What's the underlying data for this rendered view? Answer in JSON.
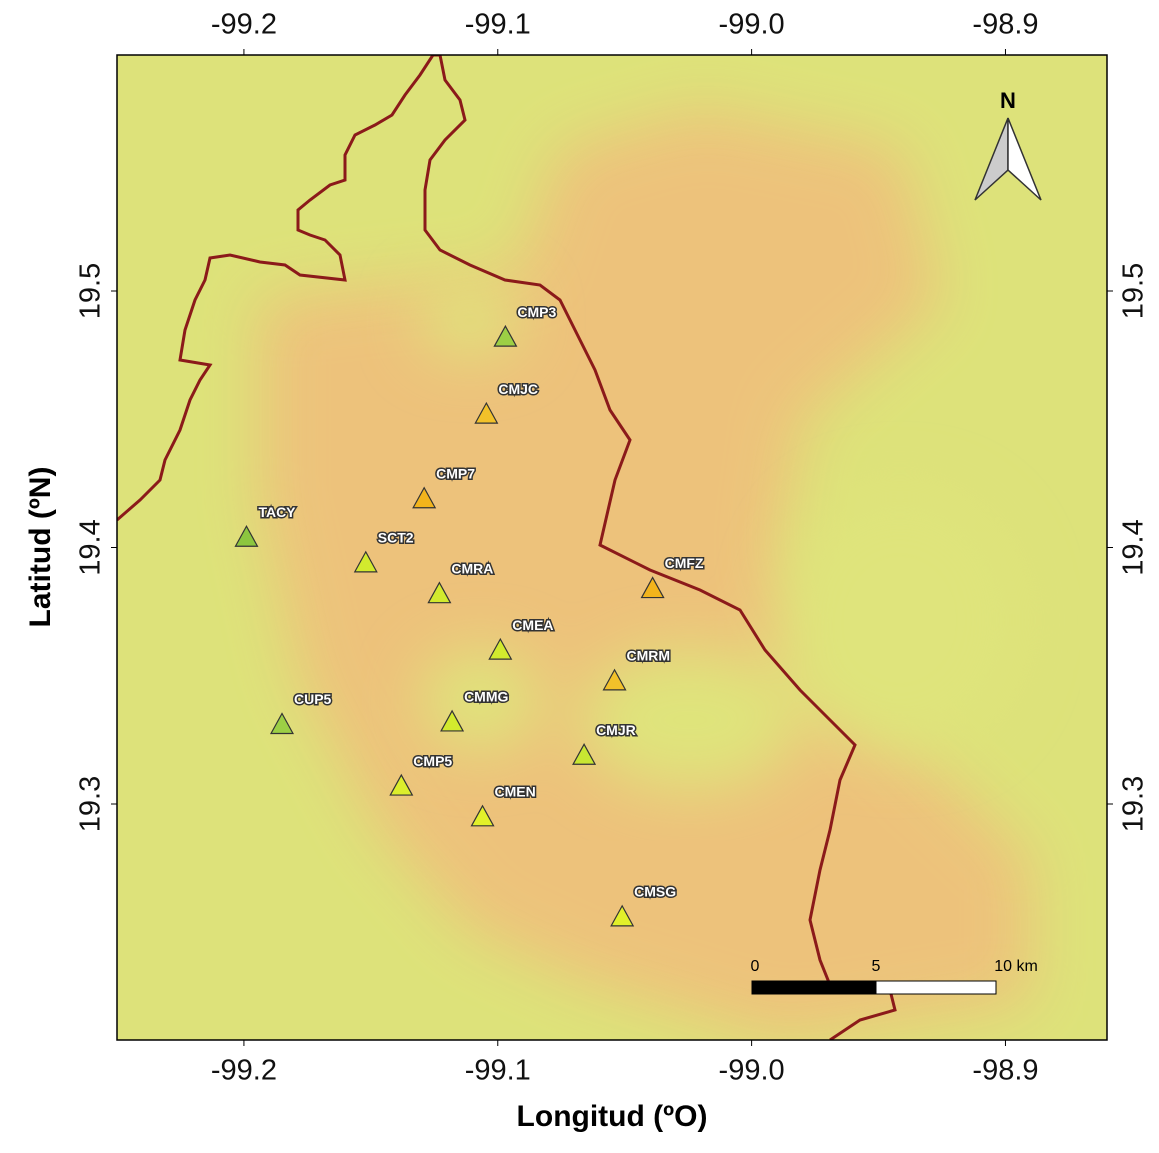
{
  "map": {
    "x_label": "Longitud (ºO)",
    "y_label": "Latitud (ºN)",
    "xlim": [
      -99.25,
      -98.86
    ],
    "ylim": [
      19.208,
      19.592
    ],
    "xticks": [
      -99.2,
      -99.1,
      {
        "value": -99.0,
        "label": "-99.0"
      },
      -98.9
    ],
    "yticks": [
      19.3,
      19.4,
      19.5
    ],
    "north": "N",
    "scale_labels": [
      "0",
      "5",
      "10 km"
    ],
    "stations": [
      {
        "label": "CMP3",
        "lon": -99.097,
        "lat": 19.482,
        "color": "#9ccf45"
      },
      {
        "label": "CMJC",
        "lon": -99.1045,
        "lat": 19.452,
        "color": "#f2c12a"
      },
      {
        "label": "CMP7",
        "lon": -99.129,
        "lat": 19.419,
        "color": "#f2b41c"
      },
      {
        "label": "TACY",
        "lon": -99.199,
        "lat": 19.404,
        "color": "#8cc63f"
      },
      {
        "label": "SCT2",
        "lon": -99.152,
        "lat": 19.394,
        "color": "#d2ea2e"
      },
      {
        "label": "CMRA",
        "lon": -99.123,
        "lat": 19.382,
        "color": "#d2ea2e"
      },
      {
        "label": "CMFZ",
        "lon": -99.039,
        "lat": 19.384,
        "color": "#f2b41c"
      },
      {
        "label": "CMEA",
        "lon": -99.099,
        "lat": 19.36,
        "color": "#d2ea2e"
      },
      {
        "label": "CMRM",
        "lon": -99.054,
        "lat": 19.348,
        "color": "#f2c12a"
      },
      {
        "label": "CMMG",
        "lon": -99.118,
        "lat": 19.332,
        "color": "#d2ea2e"
      },
      {
        "label": "CUP5",
        "lon": -99.185,
        "lat": 19.331,
        "color": "#9ccf45"
      },
      {
        "label": "CMJR",
        "lon": -99.066,
        "lat": 19.319,
        "color": "#c8e632"
      },
      {
        "label": "CMP5",
        "lon": -99.138,
        "lat": 19.307,
        "color": "#dcee2c"
      },
      {
        "label": "CMEN",
        "lon": -99.106,
        "lat": 19.295,
        "color": "#e2f02a"
      },
      {
        "label": "CMSG",
        "lon": -99.051,
        "lat": 19.256,
        "color": "#e2f02a"
      }
    ]
  }
}
